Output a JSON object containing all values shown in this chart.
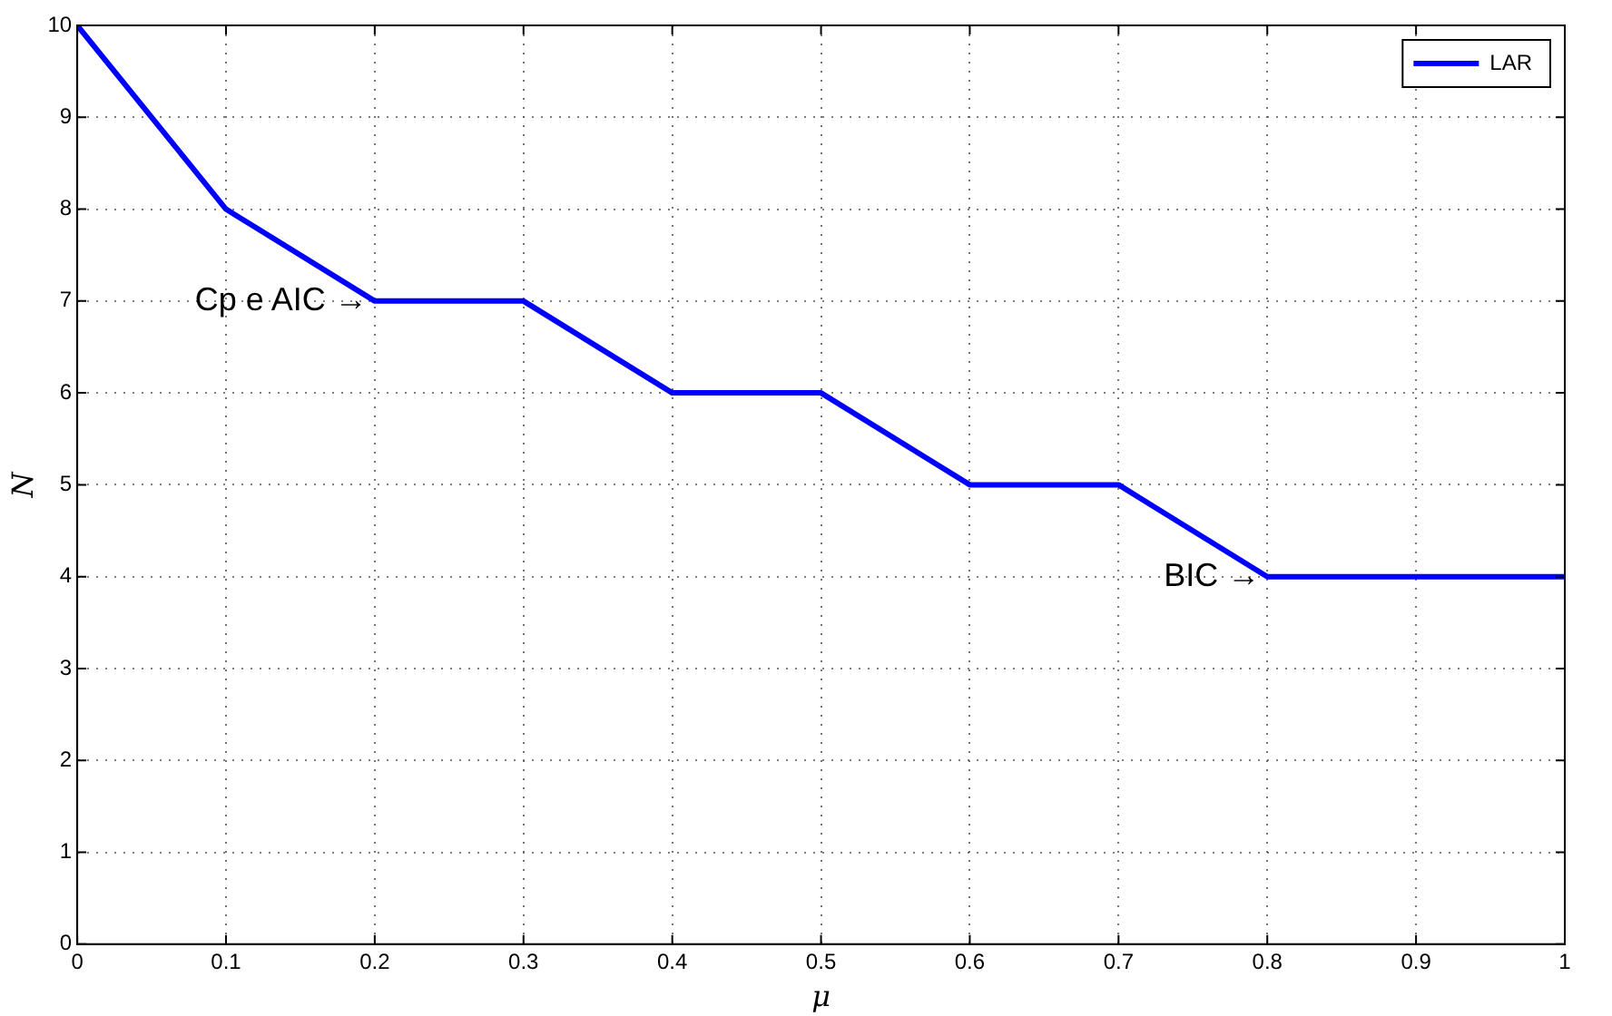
{
  "chart_data": {
    "type": "line",
    "xlabel": "μ",
    "ylabel": "N",
    "x": [
      0,
      0.1,
      0.2,
      0.3,
      0.4,
      0.5,
      0.6,
      0.7,
      0.8,
      0.9,
      1
    ],
    "series": [
      {
        "name": "LAR",
        "color": "#0000ff",
        "values": [
          10,
          8,
          7,
          7,
          6,
          6,
          5,
          5,
          4,
          4,
          4
        ]
      }
    ],
    "xlim": [
      0,
      1
    ],
    "xticks": [
      0,
      0.1,
      0.2,
      0.3,
      0.4,
      0.5,
      0.6,
      0.7,
      0.8,
      0.9,
      1
    ],
    "ylim": [
      0,
      10
    ],
    "yticks": [
      0,
      1,
      2,
      3,
      4,
      5,
      6,
      7,
      8,
      9,
      10
    ],
    "grid": true,
    "legend": "top right",
    "marker": "none",
    "line_style": "solid",
    "annotations": [
      {
        "text": "Cp e AIC →",
        "x": 0.2,
        "y": 7
      },
      {
        "text": "BIC →",
        "x": 0.8,
        "y": 4
      }
    ]
  }
}
